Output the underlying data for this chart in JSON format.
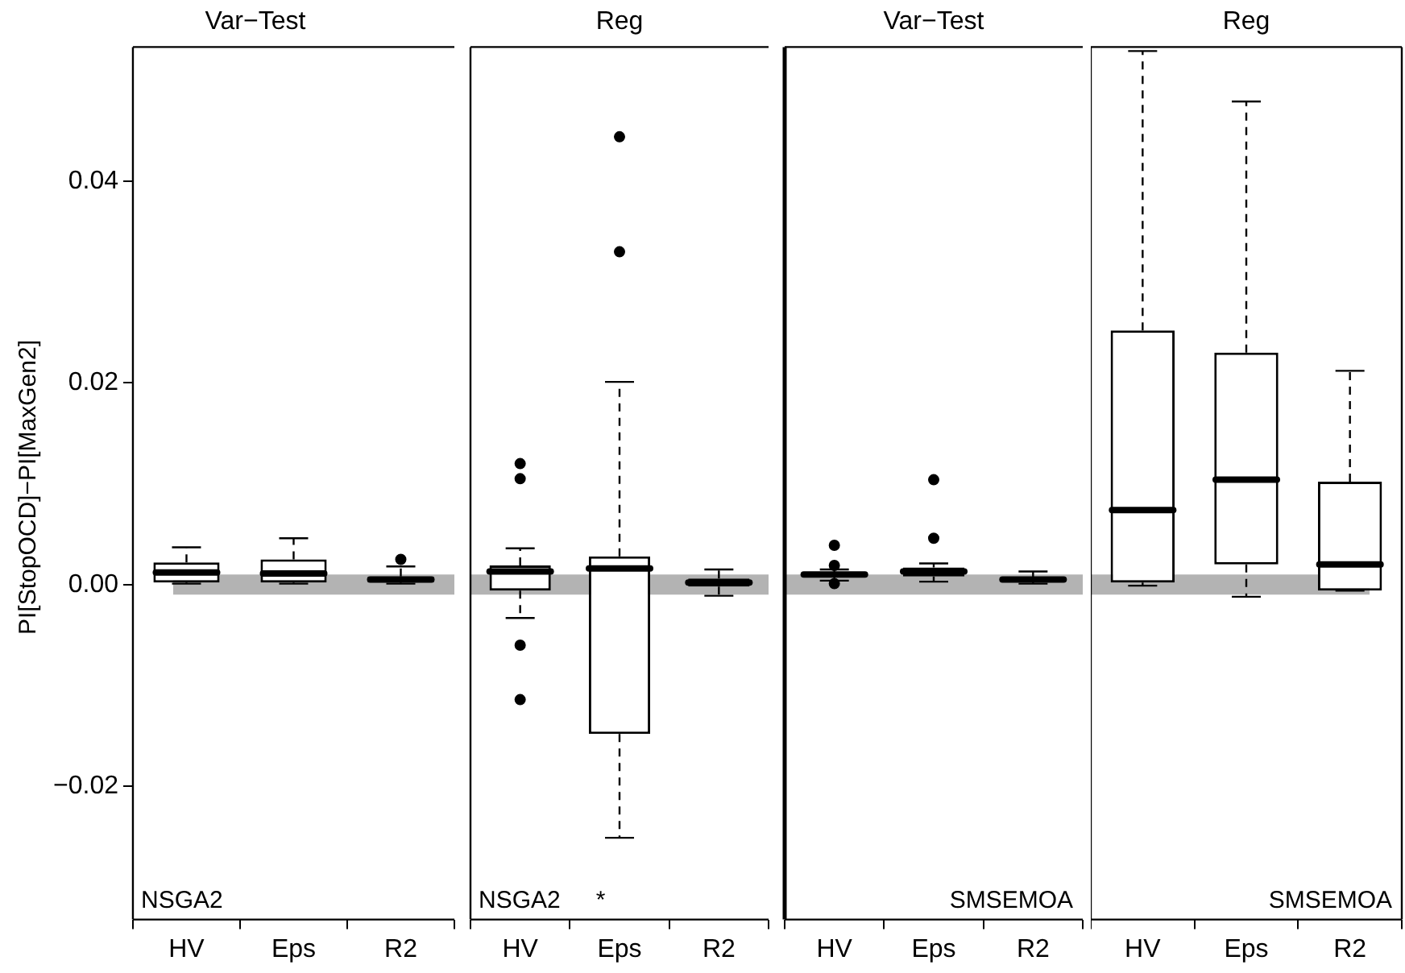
{
  "chart_data": [
    {
      "type": "box",
      "title": "Var−Test",
      "ylabel": "PI[StopOCD]−PI[MaxGen2]",
      "categories": [
        "HV",
        "Eps",
        "R2"
      ],
      "ylim": [
        -0.0332,
        0.0533
      ],
      "yticks": [
        {
          "value": -0.02,
          "label": "−0.02"
        },
        {
          "value": 0,
          "label": "0.00"
        },
        {
          "value": 0.02,
          "label": "0.02"
        },
        {
          "value": 0.04,
          "label": "0.04"
        }
      ],
      "grid": false,
      "legend": false,
      "marker": "circle",
      "line_style": "dashed",
      "bands": [
        {
          "axis": "y",
          "from": -0.001,
          "to": 0.001,
          "color": "#b3b3b3"
        }
      ],
      "annotations": [
        "NSGA2"
      ],
      "boxes": [
        {
          "low": 0.0001,
          "q1": 0.0002,
          "median": 0.0012,
          "q3": 0.0022,
          "high": 0.0037
        },
        {
          "low": 0.0001,
          "q1": 0.0002,
          "median": 0.0011,
          "q3": 0.0025,
          "high": 0.0046
        },
        {
          "low": 0.0001,
          "q1": 0.0002,
          "median": 0.0005,
          "q3": 0.0008,
          "high": 0.0018,
          "outliers": [
            0.0025
          ]
        }
      ]
    },
    {
      "type": "box",
      "title": "Reg",
      "categories": [
        "HV",
        "Eps",
        "R2"
      ],
      "ylim": [
        -0.0332,
        0.0533
      ],
      "tick_labels": "x",
      "grid": false,
      "legend": false,
      "marker": "circle",
      "line_style": "dashed",
      "bands": [
        {
          "axis": "y",
          "from": -0.001,
          "to": 0.001,
          "color": "#b3b3b3"
        }
      ],
      "annotations": [
        "NSGA2",
        "*"
      ],
      "boxes": [
        {
          "low": -0.0033,
          "q1": -0.0006,
          "median": 0.0013,
          "q3": 0.0019,
          "high": 0.0036,
          "outliers": [
            0.012,
            0.0105,
            -0.006,
            -0.0114
          ]
        },
        {
          "low": -0.0251,
          "q1": -0.0148,
          "median": 0.0016,
          "q3": 0.0028,
          "high": 0.0201,
          "outliers": [
            0.0444,
            0.033
          ]
        },
        {
          "low": -0.0011,
          "q1": -0.0002,
          "median": 0.0002,
          "q3": 0.0006,
          "high": 0.0015
        }
      ]
    },
    {
      "type": "box",
      "title": "Var−Test",
      "categories": [
        "HV",
        "Eps",
        "R2"
      ],
      "ylim": [
        -0.0332,
        0.0533
      ],
      "tick_labels": "x",
      "grid": false,
      "legend": false,
      "marker": "circle",
      "line_style": "dashed",
      "bands": [
        {
          "axis": "y",
          "from": -0.001,
          "to": 0.001,
          "color": "#b3b3b3"
        }
      ],
      "annotations": [
        "SMSEMOA"
      ],
      "boxes": [
        {
          "low": 0.0004,
          "q1": 0.0007,
          "median": 0.001,
          "q3": 0.0012,
          "high": 0.0015,
          "outliers": [
            0.0039,
            0.0019,
            0.0001
          ]
        },
        {
          "low": 0.0003,
          "q1": 0.0008,
          "median": 0.0013,
          "q3": 0.0017,
          "high": 0.0021,
          "outliers": [
            0.0104,
            0.0046
          ]
        },
        {
          "low": 0.0001,
          "q1": 0.0003,
          "median": 0.0005,
          "q3": 0.0007,
          "high": 0.0013
        }
      ]
    },
    {
      "type": "box",
      "title": "Reg",
      "categories": [
        "HV",
        "Eps",
        "R2"
      ],
      "ylim": [
        -0.0332,
        0.0533
      ],
      "tick_labels": "x",
      "grid": false,
      "legend": false,
      "marker": "circle",
      "line_style": "dashed",
      "bands": [
        {
          "axis": "y",
          "from": -0.001,
          "to": 0.001,
          "color": "#b3b3b3"
        }
      ],
      "annotations": [
        "SMSEMOA"
      ],
      "boxes": [
        {
          "low": -0.0001,
          "q1": 0.0002,
          "median": 0.0074,
          "q3": 0.0252,
          "high": 0.0529
        },
        {
          "low": -0.0012,
          "q1": 0.002,
          "median": 0.0104,
          "q3": 0.023,
          "high": 0.0479
        },
        {
          "low": -0.0006,
          "q1": -0.0006,
          "median": 0.002,
          "q3": 0.0102,
          "high": 0.0212
        }
      ]
    }
  ]
}
